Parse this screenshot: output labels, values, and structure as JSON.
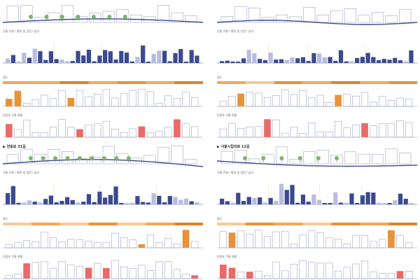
{
  "panels": [
    {
      "key": "p1",
      "label_mass": "건물 유형 / 평면 및 입면 / 높이",
      "label_use": "용도",
      "label_red": "빈점포 건물 현황",
      "band": [
        "#f2a65a",
        "#f2a65a",
        "#d9822b",
        "#f2a65a",
        "#e8923a",
        "#f2a65a",
        "#d9822b"
      ],
      "ground": "rise",
      "trees": 7
    },
    {
      "key": "p2",
      "label_mass": "건물 유형 / 평면 및 입면 / 높이",
      "label_use": "용도",
      "label_red": "빈점포 건물 현황",
      "band": [
        "#f2a65a",
        "#f7c99a",
        "#e8923a",
        "#f2a65a",
        "#d9822b",
        "#f2a65a",
        "#e8923a"
      ],
      "ground": "wave",
      "trees": 0
    },
    {
      "key": "p3",
      "title": "▶ 연동로 31길",
      "label_mass": "건물 유형 / 평면 및 입면 / 높이",
      "label_use": "용도",
      "label_red": "빈점포 건물 현황",
      "band": [
        "#f7c99a",
        "#f2a65a",
        "#f7c99a",
        "#e8923a",
        "#f7c99a",
        "#f2a65a",
        "#d9822b"
      ],
      "ground": "hill",
      "trees": 9
    },
    {
      "key": "p4",
      "title": "▶ 서울시립대로 12길",
      "label_mass": "건물 유형 / 평면 및 입면 / 높이",
      "label_use": "용도",
      "label_red": "빈점포 건물 현황",
      "band": [
        "#f7c99a",
        "#e8923a",
        "#f2a65a",
        "#f7c99a",
        "#e8923a",
        "#f2a65a",
        "#d9822b"
      ],
      "ground": "dip",
      "trees": 6
    }
  ],
  "colors": {
    "navy": "#3b4a8f",
    "lavender": "#b8bde0",
    "orange": "#e8923a",
    "peach": "#f7c99a",
    "red": "#ea6a6a",
    "outline": "#8d93b8",
    "tree": "#7fb36a"
  }
}
